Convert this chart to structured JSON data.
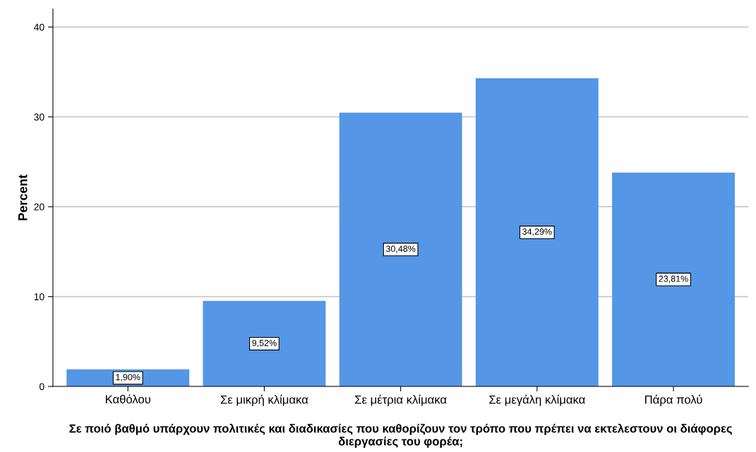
{
  "chart_data": {
    "type": "bar",
    "xlabel": "Σε ποιό βαθμό υπάρχουν πολιτικές και διαδικασίες που καθορίζουν τον τρόπο που πρέπει να εκτελεστουν οι διάφορες διεργασίες του φορέα;",
    "ylabel": "Percent",
    "categories": [
      "Καθόλου",
      "Σε μικρή κλίμακα",
      "Σε μέτρια κλίμακα",
      "Σε μεγάλη κλίμακα",
      "Πάρα πολύ"
    ],
    "values": [
      1.9,
      9.52,
      30.48,
      34.29,
      23.81
    ],
    "value_labels": [
      "1,90%",
      "9,52%",
      "30,48%",
      "34,29%",
      "23,81%"
    ],
    "color": "#5596e6",
    "ylim": [
      0,
      42
    ],
    "yticks": [
      0,
      10,
      20,
      30,
      40
    ],
    "grid": "y"
  }
}
